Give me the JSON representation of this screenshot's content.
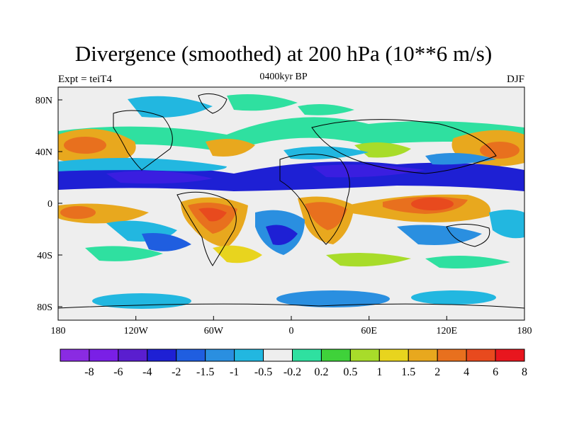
{
  "title": "Divergence (smoothed) at 200 hPa (10**6 m/s)",
  "subtitle_left": "Expt = teiT4",
  "subtitle_center": "0400kyr BP",
  "subtitle_right": "DJF",
  "y_axis_labels": [
    "80N",
    "40N",
    "0",
    "40S",
    "80S"
  ],
  "x_axis_labels": [
    "180",
    "120W",
    "60W",
    "0",
    "60E",
    "120E",
    "180"
  ],
  "colorbar": {
    "colors": [
      "#8a2be2",
      "#7a1fe6",
      "#5a1ecf",
      "#1e20d4",
      "#1f5ee0",
      "#2a8fe0",
      "#22b7e0",
      "#eeeeee",
      "#2fe0a0",
      "#3fd23a",
      "#a8dc2a",
      "#e8d41e",
      "#e8a81e",
      "#e8701e",
      "#e84a1e",
      "#e8161e"
    ],
    "labels": [
      "-8",
      "-6",
      "-4",
      "-2",
      "-1.5",
      "-1",
      "-0.5",
      "-0.2",
      "0.2",
      "0.5",
      "1",
      "1.5",
      "2",
      "4",
      "6",
      "8"
    ]
  },
  "colors": {
    "neg_strong": "#3a1ee0",
    "neg_mid": "#1f5ee0",
    "neg_weak": "#22b7e0",
    "neutral": "#eeeeee",
    "pos_weak": "#2fe0a0",
    "pos_mid": "#a8dc2a",
    "pos_strong": "#e8701e",
    "pos_max": "#e84a1e"
  }
}
